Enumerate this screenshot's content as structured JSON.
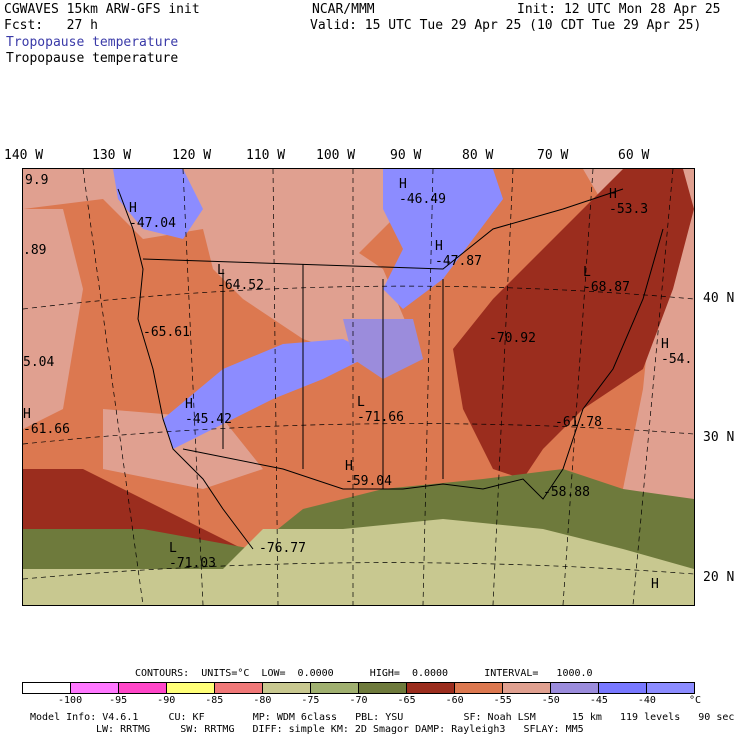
{
  "header": {
    "model": "CGWAVES 15km ARW-GFS init",
    "org": "NCAR/MMM",
    "init": "Init: 12 UTC Mon 28 Apr 25",
    "fcst": "Fcst:   27 h",
    "valid": "Valid: 15 UTC Tue 29 Apr 25 (10 CDT Tue 29 Apr 25)",
    "field1": "Tropopause temperature",
    "field2": "Tropopause temperature"
  },
  "longitudes": [
    "140 W",
    "130 W",
    "120 W",
    "110 W",
    "100 W",
    "90 W",
    "80 W",
    "70 W",
    "60 W"
  ],
  "latitudes": [
    "40 N",
    "30 N",
    "20 N"
  ],
  "map_labels": [
    {
      "letter": "H",
      "value": "-46.49"
    },
    {
      "letter": "H",
      "value": "-47.04"
    },
    {
      "letter": "H",
      "value": "-47.87"
    },
    {
      "letter": "L",
      "value": "-64.52"
    },
    {
      "letter": "H",
      "value": "-53.3"
    },
    {
      "letter": "L",
      "value": "-68.87"
    },
    {
      "letter": "",
      "value": "-65.61"
    },
    {
      "letter": "",
      "value": "-70.92"
    },
    {
      "letter": "H",
      "value": "-54."
    },
    {
      "letter": "",
      "value": "5.04"
    },
    {
      "letter": "H",
      "value": "-45.42"
    },
    {
      "letter": "L",
      "value": "-71.66"
    },
    {
      "letter": "",
      "value": "-61.78"
    },
    {
      "letter": "H",
      "value": "-61.66"
    },
    {
      "letter": "H",
      "value": "-59.04"
    },
    {
      "letter": "",
      "value": "-58.88"
    },
    {
      "letter": "",
      "value": "-76.77"
    },
    {
      "letter": "L",
      "value": "-71.03"
    },
    {
      "letter": "",
      "value": "9.9"
    },
    {
      "letter": "",
      "value": ".89"
    },
    {
      "letter": "H",
      "value": ""
    }
  ],
  "contours": {
    "text": "CONTOURS:  UNITS=°C  LOW=  0.0000      HIGH=  0.0000      INTERVAL=   1000.0"
  },
  "colorbar": {
    "colors": [
      "#ffffff",
      "#ff78ff",
      "#ff46c8",
      "#ffff78",
      "#f07878",
      "#c8c890",
      "#a0b070",
      "#6e7a3c",
      "#9b2d1e",
      "#dc7850",
      "#e0a090",
      "#9b8cdc",
      "#7878ff",
      "#8c8cff"
    ],
    "ticks": [
      "-100",
      "-95",
      "-90",
      "-85",
      "-80",
      "-75",
      "-70",
      "-65",
      "-60",
      "-55",
      "-50",
      "-45",
      "-40",
      "°C"
    ]
  },
  "model_info": {
    "line1": "Model Info: V4.6.1     CU: KF        MP: WDM 6class   PBL: YSU          SF: Noah LSM      15 km   119 levels   90 sec",
    "line2": "LW: RRTMG     SW: RRTMG   DIFF: simple KM: 2D Smagor DAMP: Rayleigh3   SFLAY: MM5"
  },
  "palette": {
    "brick": "#9b2d1e",
    "orange": "#dc7850",
    "pink": "#e0a090",
    "lavender": "#9b8cdc",
    "blue": "#7878ff",
    "olive": "#6e7a3c",
    "khaki": "#c8c890",
    "ocean": "#d0a090"
  }
}
